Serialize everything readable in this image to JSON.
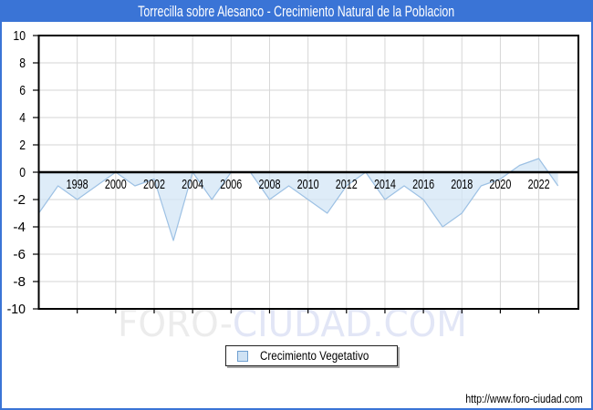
{
  "header": {
    "title": "Torrecilla sobre Alesanco - Crecimiento Natural de la Poblacion"
  },
  "watermark": {
    "part1": "FORO-",
    "part2": "CIUDAD.COM"
  },
  "legend": {
    "label": "Crecimiento Vegetativo"
  },
  "footer": {
    "url": "http://www.foro-ciudad.com"
  },
  "colors": {
    "header_bg": "#3a74d6",
    "frame": "#3a74d6",
    "line": "#9dc1e4",
    "fill": "#d3e5f6",
    "grid": "#d6d6d6",
    "axis": "#000000",
    "watermark_gray": "#ececec",
    "watermark_blue": "#e2e6f6",
    "legend_marker_fill": "#cfe2f4",
    "legend_marker_border": "#6f9fd0"
  },
  "chart_data": {
    "type": "area",
    "title": "Torrecilla sobre Alesanco - Crecimiento Natural de la Poblacion",
    "series_name": "Crecimiento Vegetativo",
    "x": [
      1996,
      1997,
      1998,
      1999,
      2000,
      2001,
      2002,
      2003,
      2004,
      2005,
      2006,
      2007,
      2008,
      2009,
      2010,
      2011,
      2012,
      2013,
      2014,
      2015,
      2016,
      2017,
      2018,
      2019,
      2020,
      2021,
      2022,
      2023
    ],
    "values": [
      -3,
      -1,
      -2,
      -1,
      0,
      -1,
      -0.5,
      -5,
      0,
      -2,
      0,
      0,
      -2,
      -1,
      -2,
      -3,
      -1,
      0,
      -2,
      -1,
      -2,
      -4,
      -3,
      -1,
      -0.5,
      0.5,
      1,
      -1
    ],
    "xticks": [
      1998,
      2000,
      2002,
      2004,
      2006,
      2008,
      2010,
      2012,
      2014,
      2016,
      2018,
      2020,
      2022
    ],
    "xlabel": "",
    "ylabel": "",
    "ylim": [
      -10,
      10
    ],
    "ytick_step": 2,
    "grid": true,
    "legend_position": "bottom-center"
  }
}
